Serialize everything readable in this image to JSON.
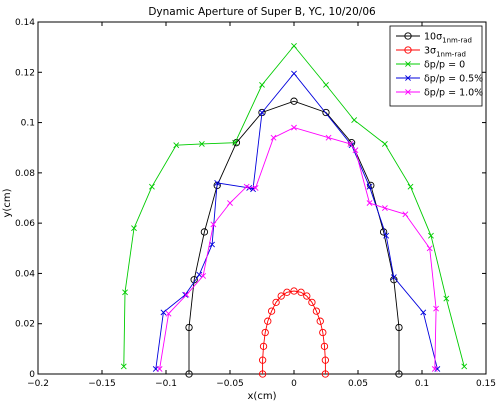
{
  "chart_data": {
    "type": "line",
    "title": "Dynamic Aperture of Super B, YC, 10/20/06",
    "xlabel": "x(cm)",
    "ylabel": "y(cm)",
    "xlim": [
      -0.2,
      0.15
    ],
    "ylim": [
      0,
      0.14
    ],
    "xticks": [
      -0.2,
      -0.15,
      -0.1,
      -0.05,
      0,
      0.05,
      0.1,
      0.15
    ],
    "xtick_labels": [
      "−0.2",
      "−0.15",
      "−0.1",
      "−0.05",
      "0",
      "0.05",
      "0.1",
      "0.15"
    ],
    "yticks": [
      0,
      0.02,
      0.04,
      0.06,
      0.08,
      0.1,
      0.12,
      0.14
    ],
    "ytick_labels": [
      "0",
      "0.02",
      "0.04",
      "0.06",
      "0.08",
      "0.1",
      "0.12",
      "0.14"
    ],
    "grid": false,
    "legend_position": "top-right",
    "series": [
      {
        "name": "10σ",
        "subscript": "1nm-rad",
        "color": "#000000",
        "marker": "circle",
        "x": [
          -0.082,
          -0.082,
          -0.078,
          -0.07,
          -0.06,
          -0.045,
          -0.025,
          0.0,
          0.025,
          0.045,
          0.06,
          0.07,
          0.078,
          0.082,
          0.082
        ],
        "y": [
          0.0,
          0.0185,
          0.0375,
          0.0565,
          0.075,
          0.092,
          0.104,
          0.1085,
          0.104,
          0.092,
          0.075,
          0.0565,
          0.0375,
          0.0185,
          0.0
        ]
      },
      {
        "name": "3σ",
        "subscript": "1nm-rad",
        "color": "#ff0000",
        "marker": "circle",
        "x": [
          -0.0245,
          -0.0245,
          -0.0238,
          -0.0225,
          -0.0205,
          -0.0175,
          -0.014,
          -0.01,
          -0.0055,
          0.0,
          0.0055,
          0.01,
          0.014,
          0.0175,
          0.0205,
          0.0225,
          0.0238,
          0.0245,
          0.0245
        ],
        "y": [
          0.0,
          0.0055,
          0.011,
          0.0165,
          0.021,
          0.025,
          0.0285,
          0.031,
          0.0325,
          0.033,
          0.0325,
          0.031,
          0.0285,
          0.025,
          0.021,
          0.0165,
          0.011,
          0.0055,
          0.0
        ]
      },
      {
        "name": "δp/p = 0",
        "color": "#00cc00",
        "marker": "x",
        "x": [
          -0.133,
          -0.132,
          -0.125,
          -0.111,
          -0.092,
          -0.072,
          -0.046,
          -0.025,
          0.0,
          0.025,
          0.047,
          0.071,
          0.091,
          0.107,
          0.119,
          0.133
        ],
        "y": [
          0.003,
          0.0325,
          0.058,
          0.0745,
          0.091,
          0.0915,
          0.092,
          0.115,
          0.1305,
          0.115,
          0.101,
          0.0915,
          0.0745,
          0.055,
          0.03,
          0.003
        ]
      },
      {
        "name": "δp/p = 0.5%",
        "color": "#0000dd",
        "marker": "x",
        "x": [
          -0.108,
          -0.102,
          -0.085,
          -0.074,
          -0.064,
          -0.06,
          -0.035,
          -0.032,
          -0.025,
          0.0,
          0.045,
          0.059,
          0.072,
          0.078,
          0.101,
          0.112
        ],
        "y": [
          0.002,
          0.0245,
          0.0315,
          0.0395,
          0.0515,
          0.076,
          0.074,
          0.0735,
          0.104,
          0.1195,
          0.091,
          0.0745,
          0.055,
          0.0385,
          0.0245,
          0.002
        ]
      },
      {
        "name": "δp/p = 1.0%",
        "color": "#ff00ff",
        "marker": "x",
        "x": [
          -0.105,
          -0.098,
          -0.084,
          -0.071,
          -0.063,
          -0.05,
          -0.037,
          -0.03,
          -0.016,
          0.0,
          0.027,
          0.044,
          0.048,
          0.059,
          0.071,
          0.087,
          0.106,
          0.111,
          0.11
        ],
        "y": [
          0.002,
          0.024,
          0.0315,
          0.039,
          0.0595,
          0.068,
          0.0745,
          0.074,
          0.094,
          0.098,
          0.094,
          0.0915,
          0.089,
          0.068,
          0.066,
          0.0635,
          0.05,
          0.026,
          0.002
        ]
      }
    ]
  }
}
